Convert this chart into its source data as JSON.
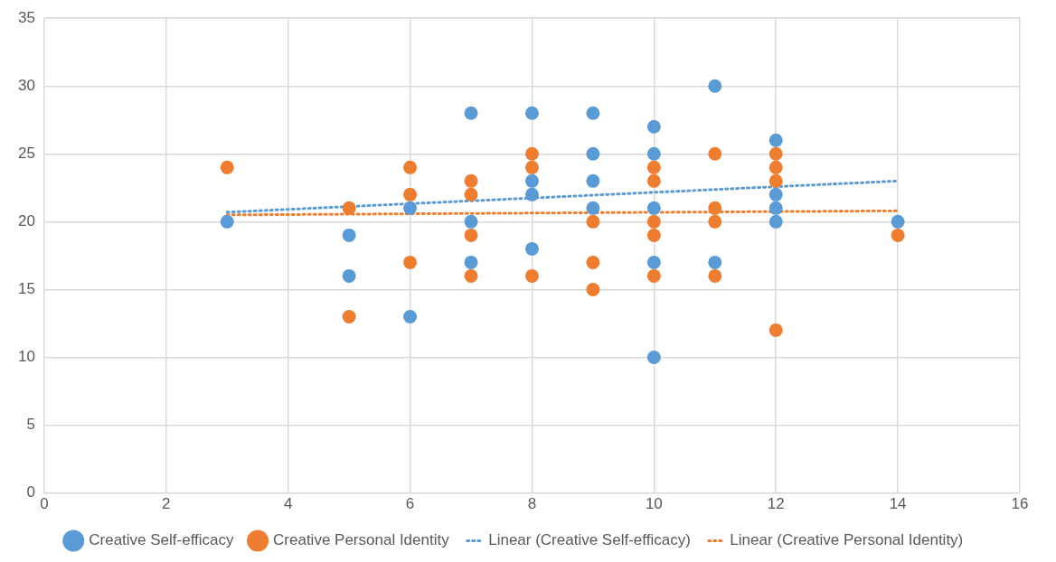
{
  "chart_data": {
    "type": "scatter",
    "xlim": [
      0,
      16
    ],
    "xticks": [
      0,
      2,
      4,
      6,
      8,
      10,
      12,
      14,
      16
    ],
    "ylim": [
      0,
      35
    ],
    "yticks": [
      0,
      5,
      10,
      15,
      20,
      25,
      30,
      35
    ],
    "grid": true,
    "legend": "bottom",
    "marker": "circle",
    "series": [
      {
        "name": "Creative Self-efficacy",
        "color": "#5b9bd5",
        "x": [
          3,
          5,
          5,
          6,
          6,
          7,
          7,
          7,
          8,
          8,
          8,
          8,
          9,
          9,
          9,
          9,
          10,
          10,
          10,
          10,
          10,
          11,
          11,
          12,
          12,
          12,
          12,
          14
        ],
        "values": [
          20,
          19,
          16,
          21,
          13,
          28,
          20,
          17,
          28,
          23,
          22,
          18,
          28,
          25,
          23,
          21,
          27,
          25,
          21,
          17,
          10,
          30,
          17,
          26,
          22,
          21,
          20,
          20
        ]
      },
      {
        "name": "Creative Personal Identity",
        "color": "#ed7d31",
        "x": [
          3,
          5,
          5,
          6,
          6,
          6,
          7,
          7,
          7,
          7,
          8,
          8,
          8,
          9,
          9,
          9,
          10,
          10,
          10,
          10,
          10,
          11,
          11,
          11,
          11,
          12,
          12,
          12,
          12,
          14
        ],
        "values": [
          24,
          21,
          13,
          24,
          22,
          17,
          23,
          22,
          19,
          16,
          25,
          24,
          16,
          20,
          17,
          15,
          24,
          23,
          20,
          19,
          16,
          25,
          21,
          20,
          16,
          25,
          24,
          23,
          12,
          19
        ]
      },
      {
        "name": "Linear (Creative Self-efficacy)",
        "type": "line",
        "color": "#5b9bd5",
        "line_style": "dotted",
        "marker": "none",
        "x": [
          3,
          14
        ],
        "values": [
          20.7,
          23.0
        ]
      },
      {
        "name": "Linear (Creative Personal Identity)",
        "type": "line",
        "color": "#ed7d31",
        "line_style": "dotted",
        "marker": "none",
        "x": [
          3,
          14
        ],
        "values": [
          20.5,
          20.8
        ]
      }
    ]
  }
}
